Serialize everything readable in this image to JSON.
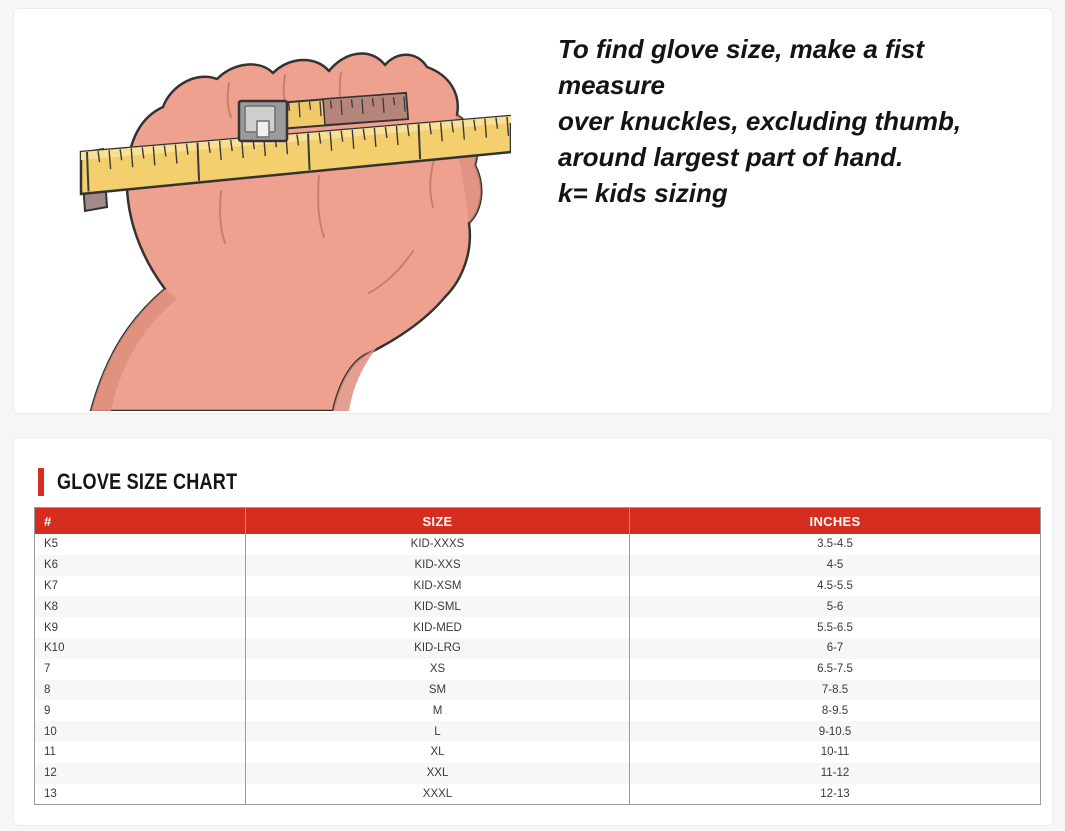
{
  "instructions": {
    "line1": "To find glove size, make a fist measure",
    "line2": "over knuckles, excluding thumb,",
    "line3": "around largest part of hand.",
    "line4": "k= kids sizing"
  },
  "illustration": {
    "name": "hand-with-measuring-tape",
    "skin_color": "#eda18e",
    "skin_shadow_color": "#dd8f7d",
    "tape_color": "#f3cf6d",
    "tape_highlight_color": "#f8e095",
    "tape_shadow_color": "#b5857a",
    "clip_color": "#9b9b9b",
    "outline_color": "#333333"
  },
  "chart": {
    "title": "GLOVE SIZE CHART",
    "accent_color": "#d52d20",
    "columns": [
      "#",
      "SIZE",
      "INCHES"
    ],
    "rows": [
      [
        "K5",
        "KID-XXXS",
        "3.5-4.5"
      ],
      [
        "K6",
        "KID-XXS",
        "4-5"
      ],
      [
        "K7",
        "KID-XSM",
        "4.5-5.5"
      ],
      [
        "K8",
        "KID-SML",
        "5-6"
      ],
      [
        "K9",
        "KID-MED",
        "5.5-6.5"
      ],
      [
        "K10",
        "KID-LRG",
        "6-7"
      ],
      [
        "7",
        "XS",
        "6.5-7.5"
      ],
      [
        "8",
        "SM",
        "7-8.5"
      ],
      [
        "9",
        "M",
        "8-9.5"
      ],
      [
        "10",
        "L",
        "9-10.5"
      ],
      [
        "11",
        "XL",
        "10-11"
      ],
      [
        "12",
        "XXL",
        "11-12"
      ],
      [
        "13",
        "XXXL",
        "12-13"
      ]
    ]
  },
  "chart_data": {
    "type": "table",
    "title": "GLOVE SIZE CHART",
    "columns": [
      "#",
      "SIZE",
      "INCHES"
    ],
    "rows": [
      [
        "K5",
        "KID-XXXS",
        "3.5-4.5"
      ],
      [
        "K6",
        "KID-XXS",
        "4-5"
      ],
      [
        "K7",
        "KID-XSM",
        "4.5-5.5"
      ],
      [
        "K8",
        "KID-SML",
        "5-6"
      ],
      [
        "K9",
        "KID-MED",
        "5.5-6.5"
      ],
      [
        "K10",
        "KID-LRG",
        "6-7"
      ],
      [
        "7",
        "XS",
        "6.5-7.5"
      ],
      [
        "8",
        "SM",
        "7-8.5"
      ],
      [
        "9",
        "M",
        "8-9.5"
      ],
      [
        "10",
        "L",
        "9-10.5"
      ],
      [
        "11",
        "XL",
        "10-11"
      ],
      [
        "12",
        "XXL",
        "11-12"
      ],
      [
        "13",
        "XXXL",
        "12-13"
      ]
    ]
  }
}
